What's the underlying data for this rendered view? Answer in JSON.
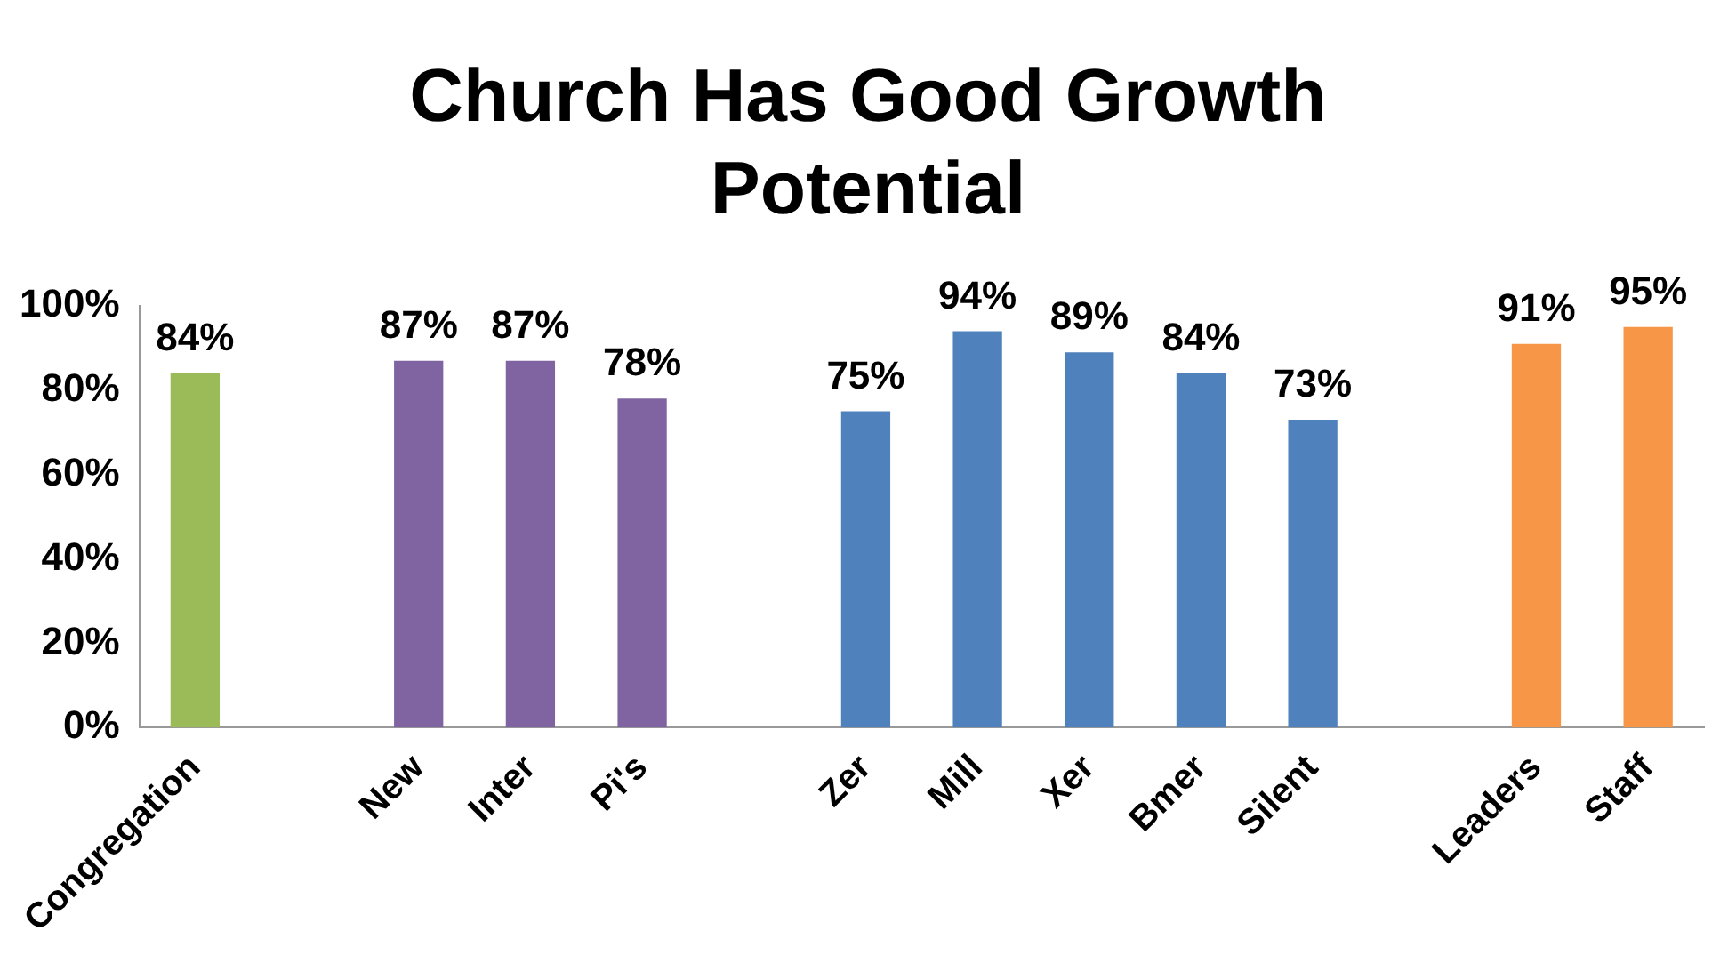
{
  "chart_data": {
    "type": "bar",
    "title": "Church Has Good Growth Potential",
    "categories": [
      "Congregation",
      null,
      "New",
      "Inter",
      "Pi's",
      null,
      "Zer",
      "Mill",
      "Xer",
      "Bmer",
      "Silent",
      null,
      "Leaders",
      "Staff"
    ],
    "values": [
      84,
      null,
      87,
      87,
      78,
      null,
      75,
      94,
      89,
      84,
      73,
      null,
      91,
      95
    ],
    "colors": [
      "#9bbb59",
      "#9bbb59",
      "#8064a2",
      "#8064a2",
      "#8064a2",
      "#4f81bd",
      "#4f81bd",
      "#4f81bd",
      "#4f81bd",
      "#4f81bd",
      "#4f81bd",
      "#f79646",
      "#f79646",
      "#f79646"
    ],
    "value_labels": [
      "84%",
      null,
      "87%",
      "87%",
      "78%",
      null,
      "75%",
      "94%",
      "89%",
      "84%",
      "73%",
      null,
      "91%",
      "95%"
    ],
    "ylim": [
      0,
      100
    ],
    "yticks": [
      {
        "value": 0,
        "label": "0%"
      },
      {
        "value": 20,
        "label": "20%"
      },
      {
        "value": 40,
        "label": "40%"
      },
      {
        "value": 60,
        "label": "60%"
      },
      {
        "value": 80,
        "label": "80%"
      },
      {
        "value": 100,
        "label": "100%"
      }
    ],
    "grid": false,
    "legend": false
  }
}
